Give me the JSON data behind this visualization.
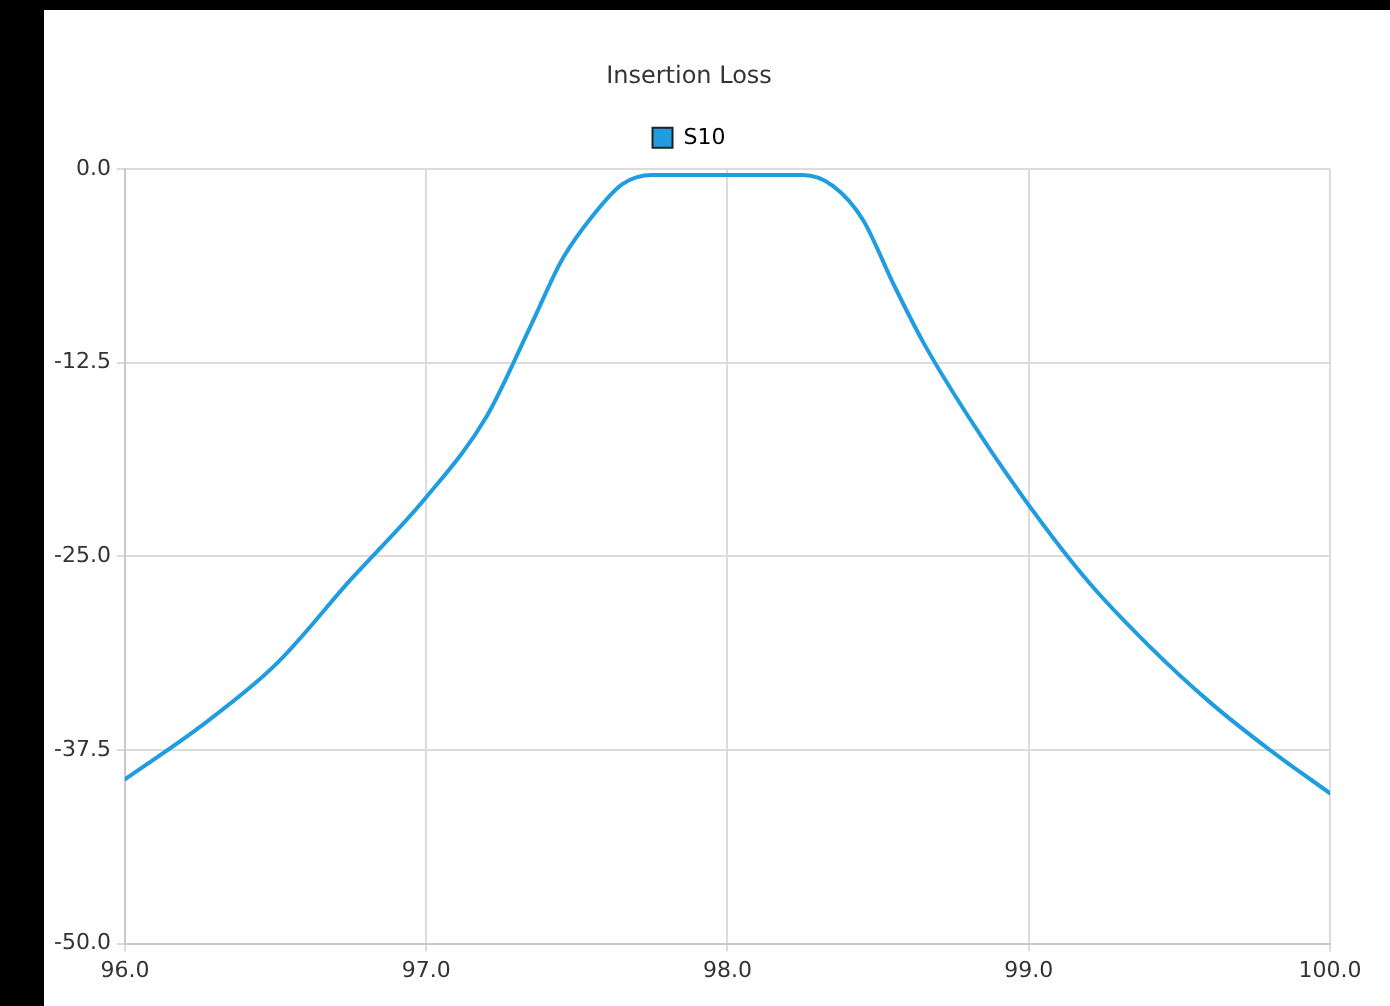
{
  "chart_data": {
    "type": "line",
    "title": "Insertion Loss",
    "x": [
      96.0,
      96.25,
      96.5,
      96.75,
      97.0,
      97.2,
      97.35,
      97.45,
      97.55,
      97.65,
      97.75,
      98.0,
      98.25,
      98.35,
      98.45,
      98.55,
      98.65,
      98.8,
      99.0,
      99.2,
      99.4,
      99.6,
      99.8,
      100.0
    ],
    "series": [
      {
        "name": "S10",
        "color": "#1f9de0",
        "values": [
          -39.4,
          -36.0,
          -32.0,
          -26.5,
          -21.2,
          -16.0,
          -10.0,
          -5.9,
          -3.1,
          -1.0,
          -0.4,
          -0.4,
          -0.4,
          -1.1,
          -3.3,
          -7.4,
          -11.2,
          -16.0,
          -21.7,
          -26.7,
          -30.8,
          -34.4,
          -37.5,
          -40.3
        ]
      }
    ],
    "xlim": [
      96.0,
      100.0
    ],
    "xticks": [
      {
        "value": 96,
        "label": "96.0"
      },
      {
        "value": 97,
        "label": "97.0"
      },
      {
        "value": 98,
        "label": "98.0"
      },
      {
        "value": 99,
        "label": "99.0"
      },
      {
        "value": 100,
        "label": "100.0"
      }
    ],
    "ylim": [
      -50.0,
      0.0
    ],
    "yticks": [
      {
        "value": -50,
        "label": "-50.0"
      },
      {
        "value": -37.5,
        "label": "-37.5"
      },
      {
        "value": -25,
        "label": "-25.0"
      },
      {
        "value": -12.5,
        "label": "-12.5"
      },
      {
        "value": 0,
        "label": "0.0"
      }
    ],
    "grid": true,
    "legend": "top",
    "marker": "none",
    "line_style": "solid"
  }
}
